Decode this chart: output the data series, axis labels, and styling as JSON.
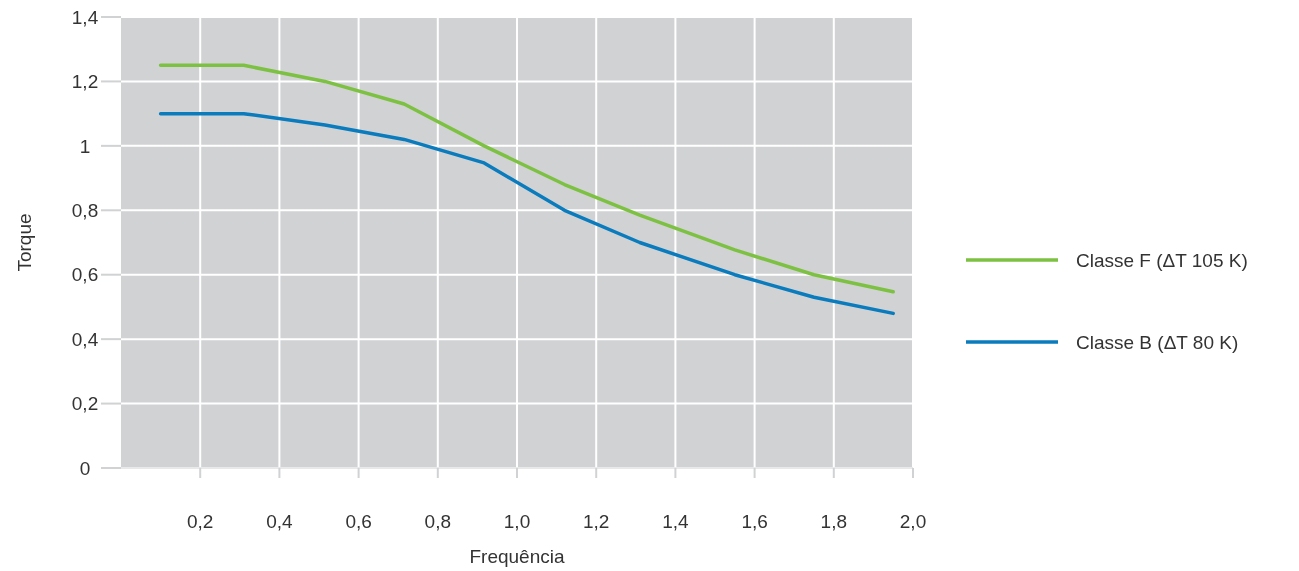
{
  "chart_data": {
    "type": "line",
    "xlabel": "Frequência",
    "ylabel": "Torque",
    "xlim": [
      0,
      2.0
    ],
    "ylim": [
      0,
      1.4
    ],
    "xticks": [
      {
        "value": 0.2,
        "label": "0,2"
      },
      {
        "value": 0.4,
        "label": "0,4"
      },
      {
        "value": 0.6,
        "label": "0,6"
      },
      {
        "value": 0.8,
        "label": "0,8"
      },
      {
        "value": 1.0,
        "label": "1,0"
      },
      {
        "value": 1.2,
        "label": "1,2"
      },
      {
        "value": 1.4,
        "label": "1,4"
      },
      {
        "value": 1.6,
        "label": "1,6"
      },
      {
        "value": 1.8,
        "label": "1,8"
      },
      {
        "value": 2.0,
        "label": "2,0"
      }
    ],
    "yticks": [
      0,
      {
        "value": 0.2,
        "label": "0,2"
      },
      {
        "value": 0.4,
        "label": "0,4"
      },
      {
        "value": 0.6,
        "label": "0,6"
      },
      {
        "value": 0.8,
        "label": "0,8"
      },
      1,
      {
        "value": 1.2,
        "label": "1,2"
      },
      {
        "value": 1.4,
        "label": "1,4"
      }
    ],
    "grid": true,
    "legend": "right",
    "marker": "none",
    "line_style": "solid",
    "series": [
      {
        "name": "Classe F (ΔT 105 K)",
        "color": "#7dc142",
        "x": [
          0.1,
          0.31,
          0.515,
          0.715,
          0.917,
          1.12,
          1.31,
          1.55,
          1.75,
          1.95
        ],
        "values": [
          1.25,
          1.25,
          1.2,
          1.13,
          1.0,
          0.88,
          0.785,
          0.677,
          0.6,
          0.547
        ]
      },
      {
        "name": "Classe B (ΔT 80 K)",
        "color": "#0a7bbd",
        "x": [
          0.1,
          0.31,
          0.515,
          0.715,
          0.917,
          1.12,
          1.31,
          1.55,
          1.75,
          1.95
        ],
        "values": [
          1.1,
          1.1,
          1.065,
          1.02,
          0.947,
          0.8,
          0.7,
          0.6,
          0.53,
          0.48
        ]
      }
    ]
  }
}
